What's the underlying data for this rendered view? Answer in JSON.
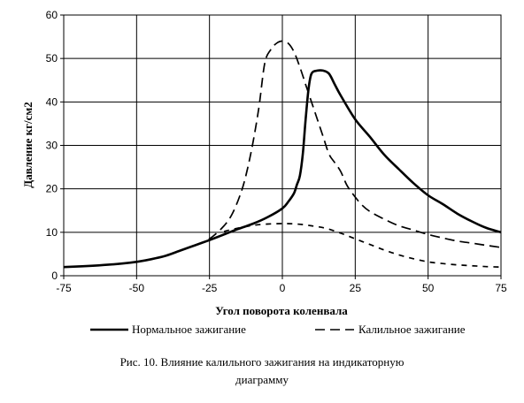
{
  "chart_data": {
    "type": "line",
    "title": "",
    "xlabel": "Угол поворота коленвала",
    "ylabel": "Давление кг/см2",
    "xlim": [
      -75,
      75
    ],
    "ylim": [
      0,
      60
    ],
    "x_ticks": [
      -75,
      -50,
      -25,
      0,
      25,
      50,
      75
    ],
    "y_ticks": [
      0,
      10,
      20,
      30,
      40,
      50,
      60
    ],
    "grid": true,
    "legend_position": "bottom",
    "series": [
      {
        "name": "Нормальное зажигание",
        "style": "solid",
        "x": [
          -75,
          -65,
          -55,
          -50,
          -45,
          -40,
          -35,
          -30,
          -25,
          -20,
          -15,
          -10,
          -5,
          0,
          2,
          4,
          5,
          6,
          7,
          8,
          9,
          10,
          12,
          14,
          16,
          18,
          20,
          25,
          30,
          35,
          40,
          45,
          50,
          55,
          60,
          65,
          70,
          75
        ],
        "y": [
          2,
          2.3,
          2.8,
          3.2,
          3.8,
          4.6,
          5.8,
          7,
          8.2,
          9.5,
          10.8,
          12,
          13.5,
          15.5,
          17,
          19,
          21,
          23,
          28,
          36,
          43,
          46.5,
          47.2,
          47.2,
          46.5,
          44,
          41.5,
          36,
          32,
          27.8,
          24.5,
          21.3,
          18.5,
          16.5,
          14.3,
          12.5,
          11,
          10
        ]
      },
      {
        "name": "Калильное зажигание",
        "style": "dashed",
        "x_main": [
          -30,
          -25,
          -20,
          -17,
          -14,
          -12,
          -10,
          -8,
          -6,
          -4,
          -2,
          0,
          2,
          4,
          6,
          8,
          10,
          12,
          14,
          16,
          18,
          20,
          22,
          24,
          27,
          30,
          35,
          40,
          45,
          50,
          55,
          60,
          65,
          70,
          75
        ],
        "y_main": [
          7,
          8.5,
          11.5,
          14.5,
          19.5,
          24.5,
          31,
          39,
          49,
          52,
          53.5,
          54,
          53.5,
          51.5,
          48,
          44,
          40,
          36,
          32,
          28,
          26,
          24,
          21,
          19,
          16.5,
          14.8,
          13,
          11.5,
          10.5,
          9.5,
          8.7,
          8,
          7.5,
          7,
          6.5
        ],
        "x_branch": [
          -20,
          -15,
          -10,
          -5,
          0,
          5,
          10,
          15,
          20,
          25,
          30,
          35,
          40,
          45,
          50,
          55,
          60,
          65,
          70,
          75
        ],
        "y_branch": [
          10.2,
          11,
          11.6,
          11.9,
          12,
          11.9,
          11.5,
          10.9,
          9.8,
          8.5,
          7.2,
          5.9,
          4.8,
          3.9,
          3.2,
          2.8,
          2.5,
          2.3,
          2.1,
          2
        ]
      }
    ]
  },
  "caption": {
    "line1": "Рис. 10. Влияние калильного зажигания на индикаторную",
    "line2": "диаграмму"
  }
}
